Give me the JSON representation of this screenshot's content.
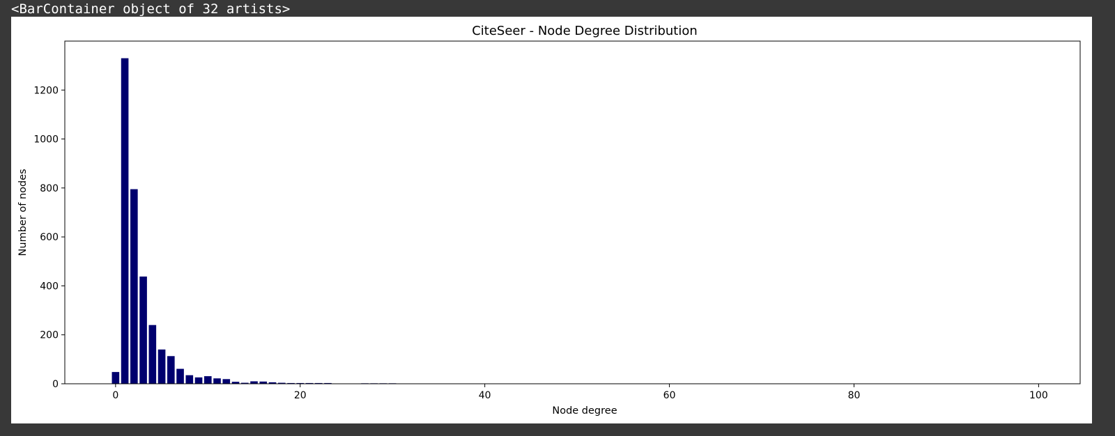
{
  "output": {
    "repr_text": "<BarContainer object of 32 artists>"
  },
  "colors": {
    "background": "#383838",
    "figure": "#ffffff",
    "bar": "#00006e",
    "axis": "#000000"
  },
  "chart_data": {
    "type": "bar",
    "title": "CiteSeer - Node Degree Distribution",
    "xlabel": "Node degree",
    "ylabel": "Number of nodes",
    "xlim": [
      -5.5,
      104.5
    ],
    "ylim": [
      0,
      1400
    ],
    "grid": false,
    "xticks": [
      0,
      20,
      40,
      60,
      80,
      100
    ],
    "yticks": [
      0,
      200,
      400,
      600,
      800,
      1000,
      1200
    ],
    "bar_width": 0.8,
    "x": [
      0,
      1,
      2,
      3,
      4,
      5,
      6,
      7,
      8,
      9,
      10,
      11,
      12,
      13,
      14,
      15,
      16,
      17,
      18,
      19,
      20,
      21,
      22,
      23,
      27,
      28,
      29,
      30,
      34,
      35,
      51,
      99
    ],
    "values": [
      48,
      1330,
      795,
      438,
      240,
      140,
      113,
      61,
      35,
      26,
      31,
      22,
      19,
      8,
      4,
      10,
      9,
      6,
      4,
      3,
      3,
      3,
      3,
      3,
      2,
      2,
      2,
      2,
      1,
      1,
      1,
      1
    ]
  }
}
